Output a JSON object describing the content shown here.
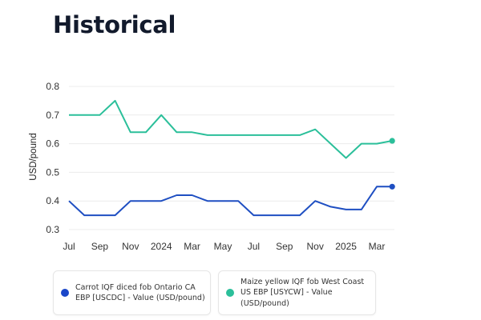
{
  "header": {
    "title": "Historical"
  },
  "chart_data": {
    "type": "line",
    "title": "",
    "xlabel": "",
    "ylabel": "USD/pound",
    "ylim": [
      0.3,
      0.8
    ],
    "yticks": [
      "0.8",
      "0.7",
      "0.6",
      "0.5",
      "0.4",
      "0.3"
    ],
    "ytick_values": [
      0.8,
      0.7,
      0.6,
      0.5,
      0.4,
      0.3
    ],
    "grid": true,
    "x": [
      "2023-07",
      "2023-08",
      "2023-09",
      "2023-10",
      "2023-11",
      "2023-12",
      "2024-01",
      "2024-02",
      "2024-03",
      "2024-04",
      "2024-05",
      "2024-06",
      "2024-07",
      "2024-08",
      "2024-09",
      "2024-10",
      "2024-11",
      "2024-12",
      "2025-01",
      "2025-02",
      "2025-03",
      "2025-04"
    ],
    "xticks": [
      {
        "index": 0,
        "label": "Jul"
      },
      {
        "index": 2,
        "label": "Sep"
      },
      {
        "index": 4,
        "label": "Nov"
      },
      {
        "index": 6,
        "label": "2024"
      },
      {
        "index": 8,
        "label": "Mar"
      },
      {
        "index": 10,
        "label": "May"
      },
      {
        "index": 12,
        "label": "Jul"
      },
      {
        "index": 14,
        "label": "Sep"
      },
      {
        "index": 16,
        "label": "Nov"
      },
      {
        "index": 18,
        "label": "2025"
      },
      {
        "index": 20,
        "label": "Mar"
      }
    ],
    "legend_position": "bottom",
    "series": [
      {
        "name": "Carrot IQF diced fob Ontario CA EBP [USCDC] - Value (USD/pound)",
        "color": "#1f4fc2",
        "values": [
          0.4,
          0.35,
          0.35,
          0.35,
          0.4,
          0.4,
          0.4,
          0.42,
          0.42,
          0.4,
          0.4,
          0.4,
          0.35,
          0.35,
          0.35,
          0.35,
          0.4,
          0.38,
          0.37,
          0.37,
          0.45,
          0.45
        ]
      },
      {
        "name": "Maize yellow IQF fob West Coast US EBP [USYCW] - Value (USD/pound)",
        "color": "#2bbf9a",
        "values": [
          0.7,
          0.7,
          0.7,
          0.75,
          0.64,
          0.64,
          0.7,
          0.64,
          0.64,
          0.63,
          0.63,
          0.63,
          0.63,
          0.63,
          0.63,
          0.63,
          0.65,
          0.6,
          0.55,
          0.6,
          0.6,
          0.61
        ]
      }
    ]
  },
  "legend": {
    "items": [
      {
        "label": "Carrot IQF diced fob Ontario CA EBP [USCDC] - Value (USD/pound)",
        "color": "#1a47c9"
      },
      {
        "label": "Maize yellow IQF fob West Coast US EBP [USYCW] - Value (USD/pound)",
        "color": "#2bbf9a"
      }
    ]
  }
}
